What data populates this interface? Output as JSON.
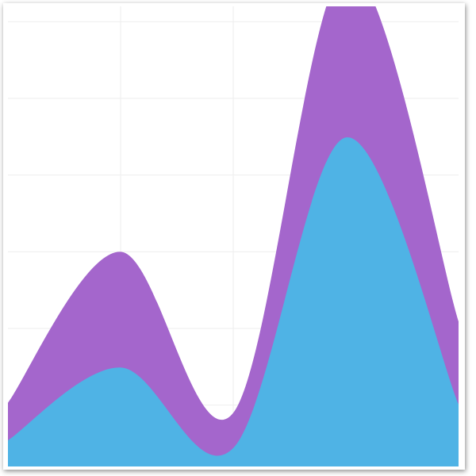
{
  "chart_data": {
    "type": "stacked-area",
    "smooth": true,
    "grid": true,
    "categories": [
      null,
      null,
      null,
      null,
      null
    ],
    "series": [
      {
        "color": "#4fb3e5",
        "values": [
          0.34,
          1.29,
          0.24,
          4.29,
          0.81
        ]
      },
      {
        "color": "#a466cc",
        "values": [
          0.49,
          1.51,
          0.46,
          2.2,
          1.08
        ]
      }
    ],
    "ylim": [
      0,
      6
    ],
    "yticks": [
      0.8,
      1.8,
      2.8,
      3.8,
      4.8,
      5.8
    ]
  }
}
